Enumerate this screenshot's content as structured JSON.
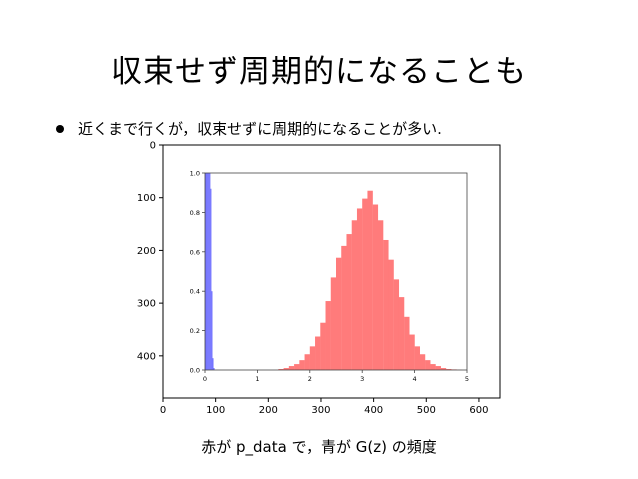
{
  "slide": {
    "title": "収束せず周期的になることも",
    "bullet": "近くまで行くが，収束せずに周期的になることが多い.",
    "caption": "赤が p_data で，青が G(z) の頻度"
  },
  "colors": {
    "red_series": "#ff7b7b",
    "blue_series": "#7373ff"
  },
  "chart_data": {
    "type": "bar",
    "outer_axes": {
      "x_ticks": [
        "0",
        "100",
        "200",
        "300",
        "400",
        "500",
        "600"
      ],
      "y_ticks": [
        "0",
        "100",
        "200",
        "300",
        "400"
      ],
      "xlim": [
        0,
        640
      ],
      "ylim": [
        480,
        0
      ]
    },
    "inner_axes": {
      "xlim": [
        0,
        5
      ],
      "ylim": [
        0,
        1.0
      ],
      "x_ticks": [
        "0",
        "1",
        "2",
        "3",
        "4",
        "5"
      ],
      "y_ticks": [
        "0.0",
        "0.2",
        "0.4",
        "0.6",
        "0.8",
        "1.0"
      ]
    },
    "series": [
      {
        "color": "red",
        "bin_width": 0.1,
        "x": [
          1.4,
          1.5,
          1.6,
          1.7,
          1.8,
          1.9,
          2.0,
          2.1,
          2.2,
          2.3,
          2.4,
          2.5,
          2.6,
          2.7,
          2.8,
          2.9,
          3.0,
          3.1,
          3.2,
          3.3,
          3.4,
          3.5,
          3.6,
          3.7,
          3.8,
          3.9,
          4.0,
          4.1,
          4.2,
          4.3,
          4.4,
          4.5,
          4.6,
          4.7,
          4.8
        ],
        "values": [
          0.005,
          0.01,
          0.02,
          0.03,
          0.05,
          0.08,
          0.12,
          0.17,
          0.24,
          0.35,
          0.47,
          0.57,
          0.63,
          0.69,
          0.76,
          0.82,
          0.87,
          0.91,
          0.84,
          0.76,
          0.66,
          0.56,
          0.46,
          0.37,
          0.27,
          0.18,
          0.12,
          0.08,
          0.05,
          0.03,
          0.02,
          0.01,
          0.005,
          0.003,
          0.001
        ]
      },
      {
        "color": "blue",
        "bin_width": 0.02,
        "x": [
          0.0,
          0.02,
          0.04,
          0.06,
          0.08,
          0.1,
          0.12,
          0.14,
          0.16
        ],
        "values": [
          1.0,
          1.0,
          1.0,
          1.0,
          1.0,
          0.92,
          0.4,
          0.06,
          0.01
        ]
      }
    ]
  }
}
